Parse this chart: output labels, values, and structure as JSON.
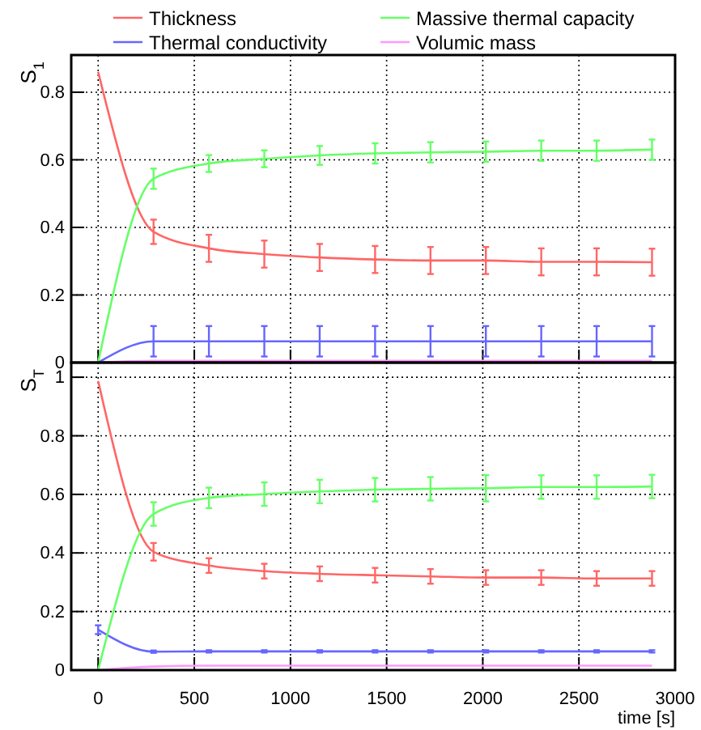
{
  "chart_data": [
    {
      "type": "line",
      "ylabel": "S$_{1}$",
      "x": [
        0,
        288,
        576,
        864,
        1152,
        1440,
        1728,
        2016,
        2304,
        2592,
        2880
      ],
      "xlim": [
        -140,
        3000
      ],
      "xticks": [
        0,
        500,
        1000,
        1500,
        2000,
        2500,
        3000
      ],
      "ylim": [
        0,
        0.91
      ],
      "yticks": [
        0,
        0.2,
        0.4,
        0.6,
        0.8
      ],
      "grid": true,
      "legend": "top",
      "tick_labels": "y",
      "marker": "none",
      "line_style": "solid",
      "series": [
        {
          "name": "Thickness",
          "color": "#ff6666",
          "values": [
            0.86,
            0.387,
            0.338,
            0.321,
            0.311,
            0.305,
            0.302,
            0.302,
            0.298,
            0.298,
            0.297
          ],
          "errors": [
            null,
            0.036,
            0.04,
            0.04,
            0.04,
            0.04,
            0.04,
            0.04,
            0.04,
            0.04,
            0.04
          ]
        },
        {
          "name": "Thermal conductivity",
          "color": "#6666ff",
          "values": [
            0,
            0.063,
            0.063,
            0.063,
            0.063,
            0.063,
            0.063,
            0.063,
            0.063,
            0.063,
            0.063
          ],
          "errors": [
            null,
            0.045,
            0.045,
            0.045,
            0.045,
            0.045,
            0.045,
            0.045,
            0.045,
            0.045,
            0.045
          ]
        },
        {
          "name": "Massive thermal capacity",
          "color": "#66ff66",
          "values": [
            0,
            0.544,
            0.589,
            0.603,
            0.613,
            0.619,
            0.622,
            0.624,
            0.627,
            0.627,
            0.63
          ],
          "errors": [
            null,
            0.03,
            0.025,
            0.025,
            0.028,
            0.03,
            0.03,
            0.03,
            0.03,
            0.03,
            0.03
          ]
        },
        {
          "name": "Volumic mass",
          "color": "#ff99ff",
          "values": [
            0,
            0.005,
            0.005,
            0.005,
            0.005,
            0.005,
            0.005,
            0.005,
            0.005,
            0.005,
            0.005
          ]
        }
      ]
    },
    {
      "type": "line",
      "ylabel": "S$_{T}$",
      "xlabel": "time [s]",
      "x": [
        0,
        288,
        576,
        864,
        1152,
        1440,
        1728,
        2016,
        2304,
        2592,
        2880
      ],
      "xlim": [
        -140,
        3000
      ],
      "xticks": [
        0,
        500,
        1000,
        1500,
        2000,
        2500,
        3000
      ],
      "ylim": [
        0,
        1.05
      ],
      "yticks": [
        0,
        0.2,
        0.4,
        0.6,
        0.8,
        1
      ],
      "grid": true,
      "marker": "none",
      "line_style": "solid",
      "series": [
        {
          "color": "#ff6666",
          "values": [
            0.987,
            0.404,
            0.357,
            0.338,
            0.329,
            0.324,
            0.32,
            0.316,
            0.316,
            0.313,
            0.313
          ],
          "errors": [
            null,
            0.03,
            0.025,
            0.025,
            0.025,
            0.025,
            0.025,
            0.025,
            0.025,
            0.025,
            0.025
          ]
        },
        {
          "color": "#6666ff",
          "values": [
            0.138,
            0.063,
            0.064,
            0.064,
            0.064,
            0.064,
            0.064,
            0.064,
            0.064,
            0.064,
            0.064
          ],
          "errors": [
            0.015,
            0.004,
            0.004,
            0.004,
            0.004,
            0.004,
            0.004,
            0.004,
            0.004,
            0.004,
            0.004
          ]
        },
        {
          "color": "#66ff66",
          "values": [
            0,
            0.533,
            0.588,
            0.601,
            0.61,
            0.616,
            0.619,
            0.621,
            0.625,
            0.625,
            0.627
          ],
          "errors": [
            null,
            0.04,
            0.035,
            0.04,
            0.04,
            0.04,
            0.04,
            0.045,
            0.04,
            0.04,
            0.04
          ]
        },
        {
          "color": "#ff99ff",
          "values": [
            0,
            0.012,
            0.015,
            0.015,
            0.015,
            0.015,
            0.015,
            0.015,
            0.015,
            0.015,
            0.015
          ]
        }
      ]
    }
  ]
}
